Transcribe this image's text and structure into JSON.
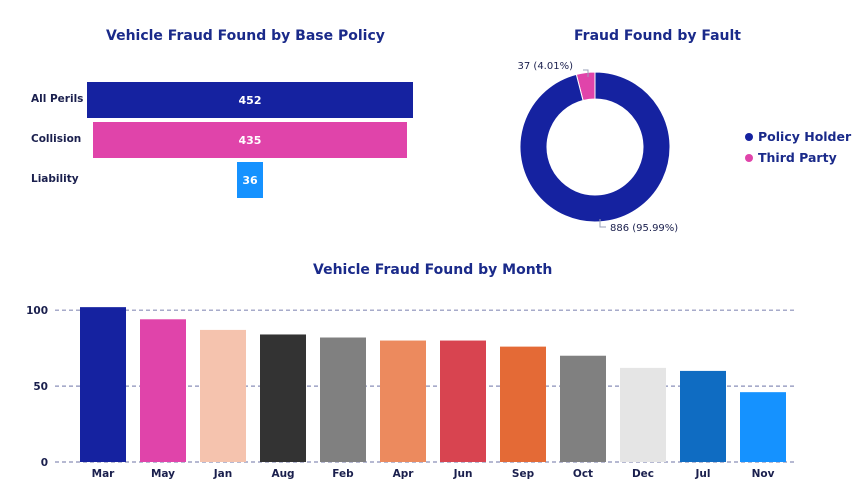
{
  "colors": {
    "title": "#1a2a8a",
    "policy_holder": "#1522a0",
    "third_party": "#e044aa"
  },
  "chart_data": [
    {
      "type": "bar",
      "orientation": "horizontal",
      "title": "Vehicle Fraud Found by Base Policy",
      "categories": [
        "All Perils",
        "Collision",
        "Liability"
      ],
      "values": [
        452,
        435,
        36
      ],
      "colors": [
        "#1522a0",
        "#e044aa",
        "#1592ff"
      ],
      "data_labels": [
        "452",
        "435",
        "36"
      ],
      "grid": false
    },
    {
      "type": "pie",
      "donut": true,
      "title": "Fraud Found by Fault",
      "categories": [
        "Policy Holder",
        "Third Party"
      ],
      "values": [
        886,
        37
      ],
      "colors": [
        "#1522a0",
        "#e044aa"
      ],
      "data_labels": [
        "886 (95.99%)",
        "37 (4.01%)"
      ],
      "legend_position": "right"
    },
    {
      "type": "bar",
      "title": "Vehicle Fraud Found by Month",
      "categories": [
        "Mar",
        "May",
        "Jan",
        "Aug",
        "Feb",
        "Apr",
        "Jun",
        "Sep",
        "Oct",
        "Dec",
        "Jul",
        "Nov"
      ],
      "values": [
        102,
        94,
        87,
        84,
        82,
        80,
        80,
        76,
        70,
        62,
        60,
        46
      ],
      "colors": [
        "#1522a0",
        "#e044aa",
        "#f5c3ae",
        "#333333",
        "#808080",
        "#ec8a5e",
        "#d84450",
        "#e46a36",
        "#808080",
        "#e5e5e5",
        "#0f6cc2",
        "#1592ff"
      ],
      "ylim": [
        0,
        110
      ],
      "yticks": [
        "0",
        "50",
        "100"
      ],
      "grid": true
    }
  ]
}
